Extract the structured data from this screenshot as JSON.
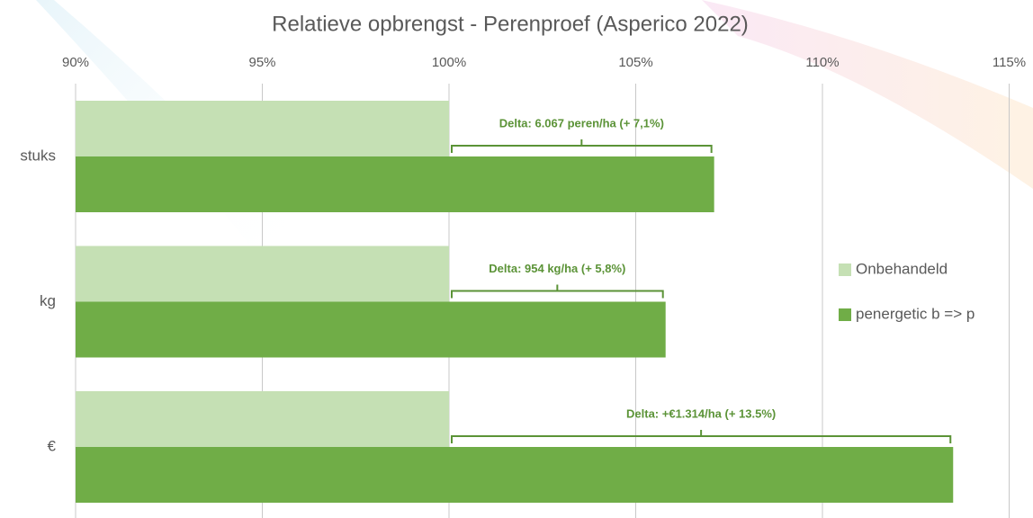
{
  "chart_data": {
    "type": "hbar",
    "title": "Relatieve opbrengst - Perenproef (Asperico 2022)",
    "categories": [
      "stuks",
      "kg",
      "€"
    ],
    "series": [
      {
        "name": "Onbehandeld",
        "color": "#c5e0b4",
        "values": [
          100,
          100,
          100
        ]
      },
      {
        "name": "penergetic b => p",
        "color": "#70ad47",
        "values": [
          107.1,
          105.8,
          113.5
        ]
      }
    ],
    "annotations": [
      "Delta: 6.067 peren/ha (+ 7,1%)",
      "Delta: 954 kg/ha (+ 5,8%)",
      "Delta: +€1.314/ha (+ 13.5%)"
    ],
    "annotation_color": "#5b9337",
    "xlim": [
      90,
      115
    ],
    "xticks": [
      {
        "value": 90,
        "label": "90%"
      },
      {
        "value": 95,
        "label": "95%"
      },
      {
        "value": 100,
        "label": "100%"
      },
      {
        "value": 105,
        "label": "105%"
      },
      {
        "value": 110,
        "label": "110%"
      },
      {
        "value": 115,
        "label": "115%"
      }
    ],
    "grid": true,
    "legend": "right"
  }
}
